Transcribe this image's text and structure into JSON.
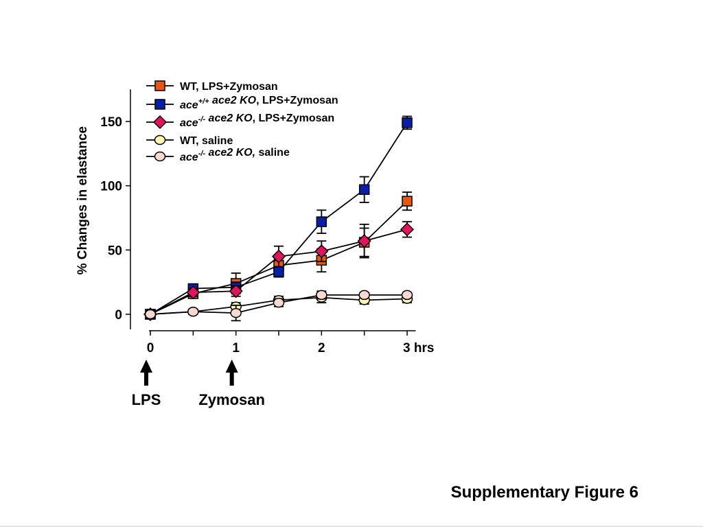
{
  "caption": "Supplementary Figure 6",
  "chart_data": {
    "type": "line",
    "title": "",
    "ylabel": "% Changes in elastance",
    "xlabel": "",
    "ylim": [
      -12,
      176
    ],
    "xlim": [
      0,
      3.1
    ],
    "xticks": [
      0,
      0.5,
      1,
      1.5,
      2,
      2.5,
      3
    ],
    "xtick_labels": [
      "0",
      "",
      "1",
      "",
      "2",
      "",
      "3 hrs"
    ],
    "yticks": [
      0,
      50,
      100,
      150
    ],
    "ytick_labels": [
      "0",
      "50",
      "100",
      "150"
    ],
    "x": [
      0,
      0.5,
      1,
      1.5,
      2,
      2.5,
      3
    ],
    "grid": false,
    "legend_position": "top-left",
    "series": [
      {
        "label_parts": [
          {
            "text": "WT, LPS+Zymosan",
            "style": "normal"
          }
        ],
        "marker": "square",
        "color": "#e8570e",
        "values": [
          0,
          16,
          24,
          38,
          42,
          56,
          88
        ],
        "errors": [
          0,
          3,
          8,
          5,
          9,
          11,
          7
        ]
      },
      {
        "label_parts": [
          {
            "text": "ace",
            "style": "italic"
          },
          {
            "text": "+/+",
            "style": "sup"
          },
          {
            "text": " ace2 KO",
            "style": "italic"
          },
          {
            "text": ", LPS+Zymosan",
            "style": "normal"
          }
        ],
        "marker": "square",
        "color": "#0a1fa8",
        "values": [
          0,
          20,
          21,
          33,
          72,
          97,
          149
        ],
        "errors": [
          0,
          3,
          4,
          4,
          9,
          10,
          5
        ]
      },
      {
        "label_parts": [
          {
            "text": "ace",
            "style": "italic"
          },
          {
            "text": "-/-",
            "style": "sup"
          },
          {
            "text": " ace2 KO",
            "style": "italic"
          },
          {
            "text": ", LPS+Zymosan",
            "style": "normal"
          }
        ],
        "marker": "diamond",
        "color": "#e2135f",
        "values": [
          0,
          17,
          18,
          45,
          49,
          57,
          66
        ],
        "errors": [
          0,
          3,
          4,
          8,
          8,
          13,
          6
        ]
      },
      {
        "label_parts": [
          {
            "text": "WT, saline",
            "style": "normal"
          }
        ],
        "marker": "circle",
        "color": "#fff7b0",
        "values": [
          0,
          2,
          6,
          11,
          13,
          11,
          12
        ],
        "errors": [
          0,
          2,
          3,
          3,
          4,
          3,
          3
        ]
      },
      {
        "label_parts": [
          {
            "text": "ace",
            "style": "italic"
          },
          {
            "text": "-/-",
            "style": "sup"
          },
          {
            "text": " ace2 KO,",
            "style": "italic"
          },
          {
            "text": " saline",
            "style": "normal"
          }
        ],
        "marker": "circle",
        "color": "#fbd9d3",
        "values": [
          0,
          2,
          1,
          9,
          15,
          15,
          15
        ],
        "errors": [
          0,
          2,
          6,
          3,
          3,
          2,
          2
        ]
      }
    ],
    "annotations": [
      {
        "x": 0,
        "text": "LPS",
        "type": "arrow-up"
      },
      {
        "x": 1,
        "text": "Zymosan",
        "type": "arrow-up"
      }
    ]
  }
}
